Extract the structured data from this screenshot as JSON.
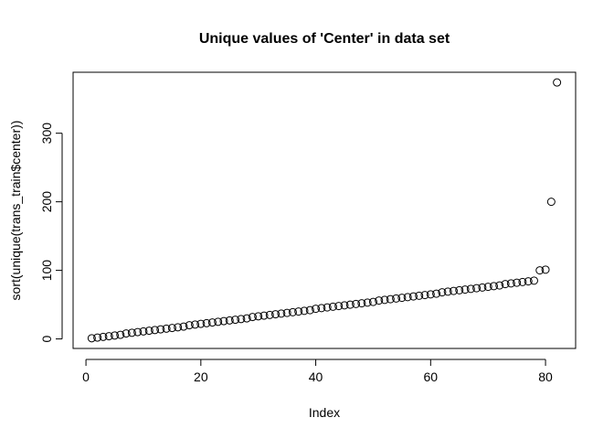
{
  "chart_data": {
    "type": "scatter",
    "title": "Unique values of 'Center' in data set",
    "x_label": "Index",
    "y_label": "sort(unique(trans_train$center))",
    "x": [
      1,
      2,
      3,
      4,
      5,
      6,
      7,
      8,
      9,
      10,
      11,
      12,
      13,
      14,
      15,
      16,
      17,
      18,
      19,
      20,
      21,
      22,
      23,
      24,
      25,
      26,
      27,
      28,
      29,
      30,
      31,
      32,
      33,
      34,
      35,
      36,
      37,
      38,
      39,
      40,
      41,
      42,
      43,
      44,
      45,
      46,
      47,
      48,
      49,
      50,
      51,
      52,
      53,
      54,
      55,
      56,
      57,
      58,
      59,
      60,
      61,
      62,
      63,
      64,
      65,
      66,
      67,
      68,
      69,
      70,
      71,
      72,
      73,
      74,
      75,
      76,
      77,
      78,
      79,
      80,
      81,
      82
    ],
    "values": [
      1,
      2,
      3,
      4,
      5,
      6,
      8,
      9,
      10,
      11,
      12,
      13,
      14,
      15,
      16,
      17,
      18,
      20,
      21,
      22,
      23,
      24,
      25,
      26,
      27,
      28,
      29,
      30,
      32,
      33,
      34,
      35,
      36,
      37,
      38,
      39,
      40,
      41,
      42,
      44,
      45,
      46,
      47,
      48,
      49,
      50,
      51,
      52,
      53,
      54,
      56,
      57,
      58,
      59,
      60,
      61,
      62,
      63,
      64,
      65,
      66,
      68,
      69,
      70,
      71,
      72,
      73,
      74,
      75,
      76,
      77,
      78,
      80,
      81,
      82,
      83,
      84,
      85,
      100,
      101,
      200,
      374
    ],
    "color": "#000000",
    "xlim": [
      -2.24,
      85.24
    ],
    "xticks": [
      0,
      20,
      40,
      60,
      80
    ],
    "ylim": [
      -13.9,
      388.9
    ],
    "yticks": [
      0,
      100,
      200,
      300
    ]
  }
}
